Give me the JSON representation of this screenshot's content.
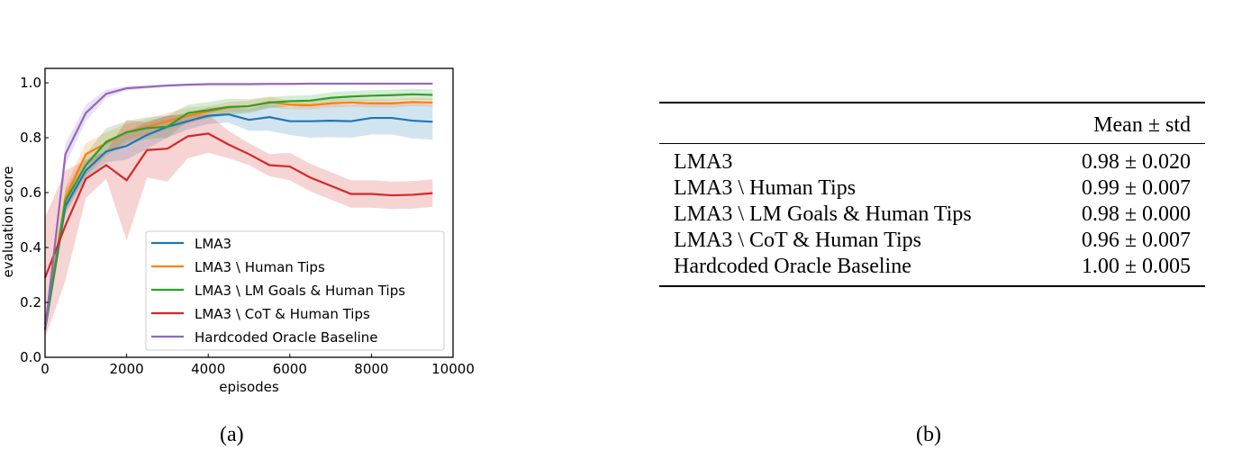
{
  "chart_data": {
    "type": "line",
    "xlabel": "episodes",
    "ylabel": "evaluation score",
    "xlim": [
      0,
      10000
    ],
    "ylim": [
      0,
      1.05
    ],
    "xticks": [
      0,
      2000,
      4000,
      6000,
      8000,
      10000
    ],
    "yticks": [
      "0.0",
      "0.2",
      "0.4",
      "0.6",
      "0.8",
      "1.0"
    ],
    "legend_placement": "lower-right",
    "grid": false,
    "x": [
      0,
      500,
      1000,
      1500,
      2000,
      2500,
      3000,
      3500,
      4000,
      4500,
      5000,
      5500,
      6000,
      6500,
      7000,
      7500,
      8000,
      8500,
      9000,
      9500
    ],
    "series": [
      {
        "name": "LMA3",
        "color": "#1f77b4",
        "values": [
          0.1,
          0.55,
          0.68,
          0.75,
          0.77,
          0.81,
          0.84,
          0.86,
          0.88,
          0.885,
          0.865,
          0.875,
          0.86,
          0.86,
          0.862,
          0.86,
          0.872,
          0.872,
          0.862,
          0.858
        ],
        "band": [
          0.02,
          0.03,
          0.03,
          0.04,
          0.05,
          0.05,
          0.04,
          0.03,
          0.03,
          0.03,
          0.04,
          0.05,
          0.05,
          0.06,
          0.06,
          0.06,
          0.06,
          0.06,
          0.065,
          0.065
        ]
      },
      {
        "name": "LMA3 \\ Human Tips",
        "color": "#ff7f0e",
        "values": [
          0.12,
          0.58,
          0.74,
          0.78,
          0.82,
          0.84,
          0.86,
          0.88,
          0.895,
          0.91,
          0.915,
          0.93,
          0.92,
          0.918,
          0.925,
          0.928,
          0.925,
          0.925,
          0.93,
          0.928
        ],
        "band": [
          0.02,
          0.04,
          0.04,
          0.04,
          0.03,
          0.03,
          0.03,
          0.03,
          0.02,
          0.02,
          0.02,
          0.02,
          0.015,
          0.015,
          0.015,
          0.015,
          0.015,
          0.015,
          0.015,
          0.015
        ]
      },
      {
        "name": "LMA3 \\ LM Goals & Human Tips",
        "color": "#2ca02c",
        "values": [
          0.1,
          0.57,
          0.7,
          0.785,
          0.82,
          0.835,
          0.84,
          0.89,
          0.9,
          0.912,
          0.915,
          0.928,
          0.933,
          0.935,
          0.945,
          0.95,
          0.953,
          0.955,
          0.958,
          0.956
        ],
        "band": [
          0.02,
          0.04,
          0.04,
          0.05,
          0.04,
          0.04,
          0.04,
          0.03,
          0.03,
          0.03,
          0.025,
          0.02,
          0.02,
          0.02,
          0.02,
          0.02,
          0.02,
          0.02,
          0.02,
          0.02
        ]
      },
      {
        "name": "LMA3 \\ CoT & Human Tips",
        "color": "#d62728",
        "values": [
          0.29,
          0.48,
          0.65,
          0.7,
          0.645,
          0.755,
          0.76,
          0.805,
          0.815,
          0.775,
          0.74,
          0.7,
          0.695,
          0.655,
          0.625,
          0.595,
          0.595,
          0.59,
          0.592,
          0.598
        ],
        "band": [
          0.22,
          0.2,
          0.07,
          0.05,
          0.22,
          0.1,
          0.12,
          0.08,
          0.07,
          0.05,
          0.04,
          0.04,
          0.05,
          0.05,
          0.05,
          0.05,
          0.05,
          0.05,
          0.05,
          0.05
        ]
      },
      {
        "name": "Hardcoded Oracle Baseline",
        "color": "#9467bd",
        "values": [
          0.1,
          0.74,
          0.89,
          0.96,
          0.98,
          0.985,
          0.99,
          0.993,
          0.995,
          0.995,
          0.995,
          0.996,
          0.996,
          0.997,
          0.997,
          0.997,
          0.997,
          0.997,
          0.997,
          0.997
        ],
        "band": [
          0.02,
          0.04,
          0.03,
          0.015,
          0.008,
          0.006,
          0.005,
          0.004,
          0.004,
          0.004,
          0.004,
          0.003,
          0.003,
          0.003,
          0.003,
          0.003,
          0.003,
          0.003,
          0.003,
          0.003
        ]
      }
    ]
  },
  "table": {
    "header": "Mean ± std",
    "rows": [
      {
        "method": "LMA3",
        "value": "0.98 ± 0.020"
      },
      {
        "method": "LMA3 \\ Human Tips",
        "value": "0.99 ± 0.007"
      },
      {
        "method": "LMA3 \\ LM Goals & Human Tips",
        "value": "0.98 ± 0.000"
      },
      {
        "method": "LMA3 \\ CoT & Human Tips",
        "value": "0.96 ± 0.007"
      },
      {
        "method": "Hardcoded Oracle Baseline",
        "value": "1.00 ± 0.005"
      }
    ]
  },
  "captions": {
    "a": "(a)",
    "b": "(b)"
  }
}
